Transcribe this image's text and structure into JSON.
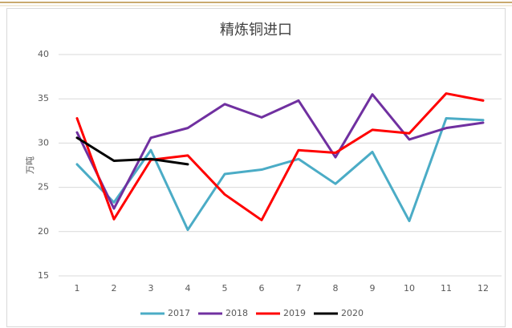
{
  "chart_data": {
    "type": "line",
    "title": "精炼铜进口",
    "y_label": "万吨",
    "categories": [
      "1",
      "2",
      "3",
      "4",
      "5",
      "6",
      "7",
      "8",
      "9",
      "10",
      "11",
      "12"
    ],
    "series": [
      {
        "name": "2017",
        "color": "#4bacc6",
        "values": [
          27.6,
          23.3,
          29.2,
          20.2,
          26.5,
          27.0,
          28.2,
          25.4,
          29.0,
          21.2,
          32.8,
          32.6
        ]
      },
      {
        "name": "2018",
        "color": "#7030a0",
        "values": [
          31.2,
          22.6,
          30.6,
          31.7,
          34.4,
          32.9,
          34.8,
          28.4,
          35.5,
          30.4,
          31.7,
          32.3
        ]
      },
      {
        "name": "2019",
        "color": "#ff0000",
        "values": [
          32.8,
          21.4,
          28.1,
          28.6,
          24.2,
          21.3,
          29.2,
          28.9,
          31.5,
          31.1,
          35.6,
          34.8
        ]
      },
      {
        "name": "2020",
        "color": "#000000",
        "values": [
          30.6,
          28.0,
          28.2,
          27.6,
          null,
          null,
          null,
          null,
          null,
          null,
          null,
          null
        ]
      }
    ],
    "ylim": [
      15,
      40
    ],
    "yticks": [
      15,
      20,
      25,
      30,
      35,
      40
    ],
    "grid": true,
    "legend": "bottom"
  }
}
